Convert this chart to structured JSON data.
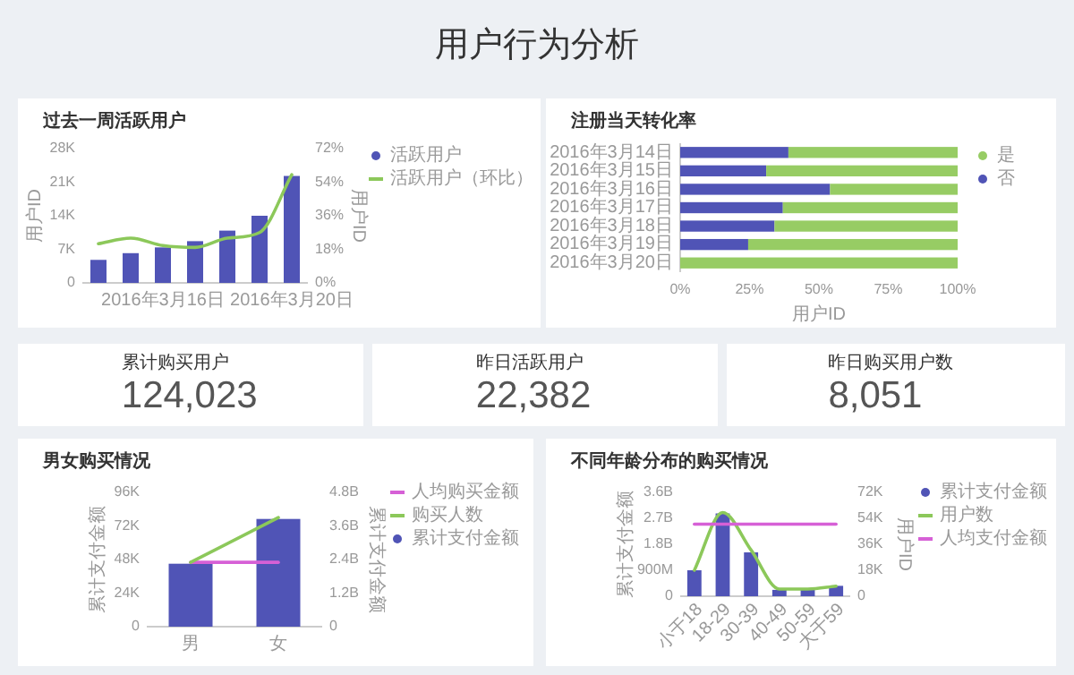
{
  "chart_data": [
    {
      "type": "other",
      "title": "用户行为分析"
    },
    {
      "type": "bar",
      "title": "过去一周活跃用户",
      "categories": [
        null,
        null,
        "2016年3月16日",
        null,
        null,
        null,
        "2016年3月20日"
      ],
      "ylabel": "用户ID",
      "y2label": "用户ID",
      "ylim": [
        0,
        28
      ],
      "yticks": [
        {
          "value": 0,
          "label": "0"
        },
        {
          "value": 7,
          "label": "7K"
        },
        {
          "value": 14,
          "label": "14K"
        },
        {
          "value": 21,
          "label": "21K"
        },
        {
          "value": 28,
          "label": "28K"
        }
      ],
      "y2lim": [
        0,
        72
      ],
      "y2ticks": [
        {
          "value": 0,
          "label": "0%"
        },
        {
          "value": 18,
          "label": "18%"
        },
        {
          "value": 36,
          "label": "36%"
        },
        {
          "value": 54,
          "label": "54%"
        },
        {
          "value": 72,
          "label": "72%"
        }
      ],
      "legend": "right",
      "series": [
        {
          "name": "活跃用户",
          "type": "bar",
          "color": "#5054b6",
          "values": [
            4.8,
            6.2,
            7.4,
            8.7,
            10.9,
            14.0,
            22.3
          ]
        },
        {
          "name": "活跃用户（环比）",
          "type": "line",
          "axis": "y2",
          "color": "#8cc85a",
          "values": [
            21,
            24,
            20,
            19,
            24,
            27,
            58
          ]
        }
      ]
    },
    {
      "type": "bar",
      "orientation": "horizontal",
      "stacked": true,
      "title": "注册当天转化率",
      "categories": [
        "2016年3月14日",
        "2016年3月15日",
        "2016年3月16日",
        "2016年3月17日",
        "2016年3月18日",
        "2016年3月19日",
        "2016年3月20日"
      ],
      "xlabel": "用户ID",
      "xlim": [
        0,
        100
      ],
      "xticks": [
        {
          "value": 0,
          "label": "0%"
        },
        {
          "value": 25,
          "label": "25%"
        },
        {
          "value": 50,
          "label": "50%"
        },
        {
          "value": 75,
          "label": "75%"
        },
        {
          "value": 100,
          "label": "100%"
        }
      ],
      "legend": "right",
      "series": [
        {
          "name": "否",
          "color": "#5054b6",
          "values": [
            39,
            31,
            54,
            37,
            34,
            24.5,
            0
          ]
        },
        {
          "name": "是",
          "color": "#97cc64",
          "values": [
            61,
            69,
            46,
            63,
            66,
            75.5,
            100
          ]
        }
      ]
    },
    {
      "type": "other",
      "title": "累计购买用户",
      "annotations": [
        "124,023"
      ]
    },
    {
      "type": "other",
      "title": "昨日活跃用户",
      "annotations": [
        "22,382"
      ]
    },
    {
      "type": "other",
      "title": "昨日购买用户数",
      "annotations": [
        "8,051"
      ]
    },
    {
      "type": "bar",
      "title": "男女购买情况",
      "categories": [
        "男",
        "女"
      ],
      "ylabel": "累计支付金额",
      "y2label": "累计支付金额",
      "ylim": [
        0,
        96
      ],
      "yticks": [
        {
          "value": 0,
          "label": "0"
        },
        {
          "value": 24,
          "label": "24K"
        },
        {
          "value": 48,
          "label": "48K"
        },
        {
          "value": 72,
          "label": "72K"
        },
        {
          "value": 96,
          "label": "96K"
        }
      ],
      "y2lim": [
        0,
        4.8
      ],
      "y2ticks": [
        {
          "value": 0,
          "label": "0"
        },
        {
          "value": 1.2,
          "label": "1.2B"
        },
        {
          "value": 2.4,
          "label": "2.4B"
        },
        {
          "value": 3.6,
          "label": "3.6B"
        },
        {
          "value": 4.8,
          "label": "4.8B"
        }
      ],
      "legend": "right",
      "series": [
        {
          "name": "人均购买金额",
          "type": "line",
          "axis": "y2",
          "color": "#d660d6",
          "values": [
            2.3,
            2.3
          ]
        },
        {
          "name": "购买人数",
          "type": "line",
          "axis": "y2",
          "color": "#8cc85a",
          "values": [
            2.3,
            3.9
          ]
        },
        {
          "name": "累计支付金额",
          "type": "bar",
          "color": "#5054b6",
          "values": [
            45,
            77
          ]
        }
      ]
    },
    {
      "type": "bar",
      "title": "不同年龄分布的购买情况",
      "categories": [
        "小于18",
        "18-29",
        "30-39",
        "40-49",
        "50-59",
        "大于59"
      ],
      "ylabel": "累计支付金额",
      "y2label": "用户ID",
      "ylim": [
        0,
        3600000000
      ],
      "yticks": [
        {
          "value": 0,
          "label": "0"
        },
        {
          "value": 900000000,
          "label": "900M"
        },
        {
          "value": 1800000000,
          "label": "1.8B"
        },
        {
          "value": 2700000000,
          "label": "2.7B"
        },
        {
          "value": 3600000000,
          "label": "3.6B"
        }
      ],
      "y2lim": [
        0,
        72
      ],
      "y2ticks": [
        {
          "value": 0,
          "label": "0"
        },
        {
          "value": 18,
          "label": "18K"
        },
        {
          "value": 36,
          "label": "36K"
        },
        {
          "value": 54,
          "label": "54K"
        },
        {
          "value": 72,
          "label": "72K"
        }
      ],
      "legend": "right",
      "series": [
        {
          "name": "累计支付金额",
          "type": "bar",
          "color": "#5054b6",
          "values": [
            900000000,
            2870000000,
            1520000000,
            220000000,
            220000000,
            360000000
          ]
        },
        {
          "name": "用户数",
          "type": "line",
          "axis": "y2",
          "color": "#8cc85a",
          "values": [
            18,
            58,
            32,
            5,
            5,
            7
          ]
        },
        {
          "name": "人均支付金额",
          "type": "line",
          "color": "#d660d6",
          "values": [
            2500000000,
            2500000000,
            2500000000,
            2500000000,
            2500000000,
            2500000000
          ]
        }
      ]
    }
  ]
}
